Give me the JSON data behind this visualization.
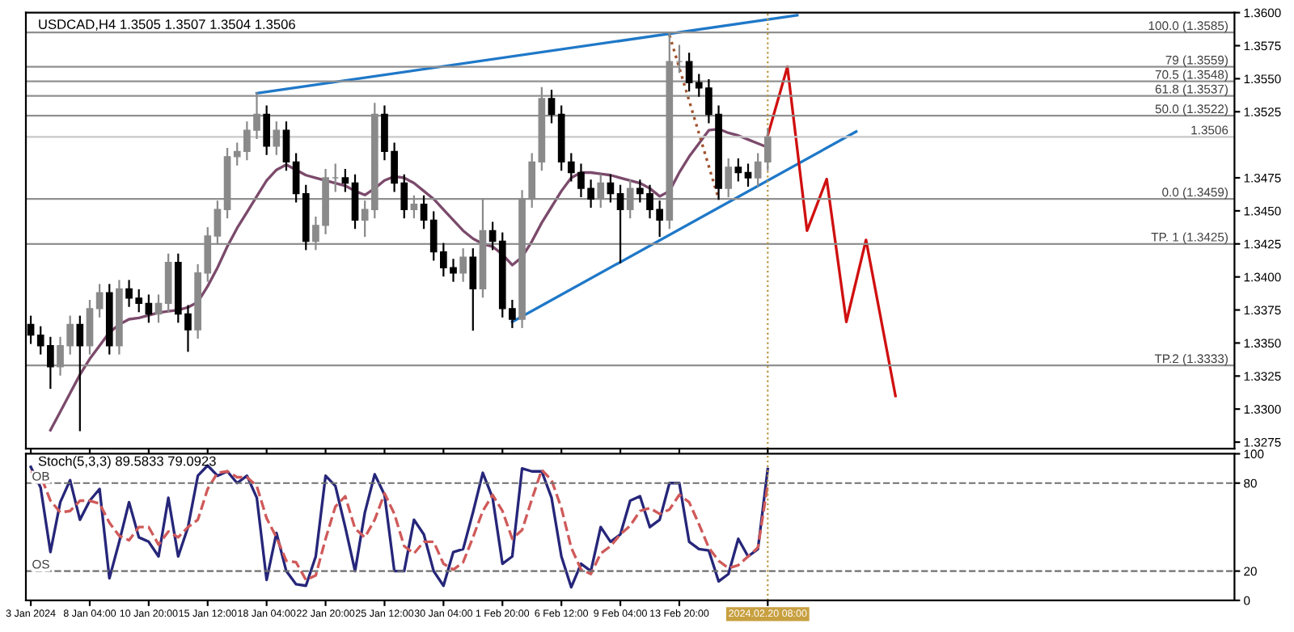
{
  "chart_data": [
    {
      "type": "candlestick",
      "title": "USDCAD,H4 1.3505 1.3507 1.3504 1.3506",
      "categories": [
        "3 Jan 2024",
        null,
        null,
        null,
        null,
        null,
        "8 Jan 04:00",
        null,
        null,
        null,
        null,
        null,
        "10 Jan 20:00",
        null,
        null,
        null,
        null,
        null,
        "15 Jan 12:00",
        null,
        null,
        null,
        null,
        null,
        "18 Jan 04:00",
        null,
        null,
        null,
        null,
        null,
        "22 Jan 20:00",
        null,
        null,
        null,
        null,
        null,
        "25 Jan 12:00",
        null,
        null,
        null,
        null,
        null,
        "30 Jan 04:00",
        null,
        null,
        null,
        null,
        null,
        "1 Feb 20:00",
        null,
        null,
        null,
        null,
        null,
        "6 Feb 12:00",
        null,
        null,
        null,
        null,
        null,
        "9 Feb 04:00",
        null,
        null,
        null,
        null,
        null,
        "13 Feb 20:00",
        null,
        null,
        null,
        null,
        null,
        null,
        null,
        null,
        "2024.02.20 08:00",
        null,
        null,
        null,
        null,
        null,
        null,
        null,
        null,
        null,
        null,
        null,
        null,
        null,
        null,
        null,
        null,
        null,
        null,
        null,
        null,
        null,
        null,
        null,
        null,
        null,
        null,
        null,
        null,
        null,
        null,
        null,
        null,
        null,
        null,
        null,
        null,
        null,
        null,
        null,
        null,
        null,
        null,
        null,
        null,
        null,
        null,
        null
      ],
      "ohlc": [
        [
          1.3364,
          1.337,
          1.335,
          1.3356
        ],
        [
          1.3356,
          1.3362,
          1.3342,
          1.3348
        ],
        [
          1.3348,
          1.3354,
          1.3316,
          1.3332
        ],
        [
          1.3332,
          1.3354,
          1.3326,
          1.3348
        ],
        [
          1.3348,
          1.337,
          1.3342,
          1.3364
        ],
        [
          1.3364,
          1.337,
          1.3284,
          1.3348
        ],
        [
          1.3348,
          1.3382,
          1.3342,
          1.3376
        ],
        [
          1.3376,
          1.3394,
          1.337,
          1.3388
        ],
        [
          1.3388,
          1.3394,
          1.3342,
          1.3348
        ],
        [
          1.3348,
          1.3397,
          1.3342,
          1.3391
        ],
        [
          1.3391,
          1.3397,
          1.3378,
          1.3384
        ],
        [
          1.3384,
          1.339,
          1.3374,
          1.338
        ],
        [
          1.338,
          1.3386,
          1.3366,
          1.3372
        ],
        [
          1.3372,
          1.3386,
          1.3366,
          1.338
        ],
        [
          1.338,
          1.3417,
          1.3374,
          1.3411
        ],
        [
          1.3411,
          1.3417,
          1.3366,
          1.3372
        ],
        [
          1.3372,
          1.3378,
          1.3344,
          1.336
        ],
        [
          1.336,
          1.3409,
          1.3354,
          1.3403
        ],
        [
          1.3403,
          1.3437,
          1.3397,
          1.3431
        ],
        [
          1.3431,
          1.3457,
          1.3425,
          1.3451
        ],
        [
          1.3451,
          1.3497,
          1.3445,
          1.3491
        ],
        [
          1.3491,
          1.3501,
          1.3485,
          1.3495
        ],
        [
          1.3495,
          1.3517,
          1.3489,
          1.3511
        ],
        [
          1.3511,
          1.3539,
          1.3505,
          1.3523
        ],
        [
          1.3523,
          1.3529,
          1.3493,
          1.3499
        ],
        [
          1.3499,
          1.3517,
          1.3493,
          1.3511
        ],
        [
          1.3511,
          1.3517,
          1.3481,
          1.3487
        ],
        [
          1.3487,
          1.3493,
          1.3457,
          1.3463
        ],
        [
          1.3463,
          1.3469,
          1.3421,
          1.3427
        ],
        [
          1.3427,
          1.3445,
          1.3421,
          1.3439
        ],
        [
          1.3439,
          1.3481,
          1.3433,
          1.3475
        ],
        [
          1.3475,
          1.3485,
          1.3465,
          1.3475
        ],
        [
          1.3475,
          1.3481,
          1.3465,
          1.3471
        ],
        [
          1.3471,
          1.3477,
          1.3437,
          1.3443
        ],
        [
          1.3443,
          1.3457,
          1.3431,
          1.3451
        ],
        [
          1.3451,
          1.3531,
          1.3445,
          1.3523
        ],
        [
          1.3523,
          1.3529,
          1.3489,
          1.3495
        ],
        [
          1.3495,
          1.3501,
          1.3465,
          1.3471
        ],
        [
          1.3471,
          1.3477,
          1.3445,
          1.3451
        ],
        [
          1.3451,
          1.3461,
          1.3445,
          1.3455
        ],
        [
          1.3455,
          1.3461,
          1.3437,
          1.3443
        ],
        [
          1.3443,
          1.3449,
          1.3413,
          1.3419
        ],
        [
          1.3419,
          1.3425,
          1.3401,
          1.3407
        ],
        [
          1.3407,
          1.3413,
          1.3397,
          1.3403
        ],
        [
          1.3403,
          1.3421,
          1.3397,
          1.3415
        ],
        [
          1.3415,
          1.3421,
          1.336,
          1.3391
        ],
        [
          1.3391,
          1.3459,
          1.3385,
          1.3435
        ],
        [
          1.3435,
          1.3441,
          1.3421,
          1.3427
        ],
        [
          1.3427,
          1.3433,
          1.337,
          1.3376
        ],
        [
          1.3376,
          1.3382,
          1.3362,
          1.3368
        ],
        [
          1.3368,
          1.3465,
          1.3362,
          1.3459
        ],
        [
          1.3459,
          1.3493,
          1.3453,
          1.3487
        ],
        [
          1.3487,
          1.3543,
          1.3481,
          1.3535
        ],
        [
          1.3535,
          1.3541,
          1.3517,
          1.3523
        ],
        [
          1.3523,
          1.3529,
          1.3481,
          1.3487
        ],
        [
          1.3487,
          1.3493,
          1.3473,
          1.3479
        ],
        [
          1.3479,
          1.3485,
          1.3461,
          1.3467
        ],
        [
          1.3467,
          1.3473,
          1.3453,
          1.3459
        ],
        [
          1.3459,
          1.3477,
          1.3453,
          1.3471
        ],
        [
          1.3471,
          1.3477,
          1.3457,
          1.3463
        ],
        [
          1.3463,
          1.3469,
          1.3411,
          1.3451
        ],
        [
          1.3451,
          1.3473,
          1.3445,
          1.3467
        ],
        [
          1.3467,
          1.3473,
          1.3457,
          1.3463
        ],
        [
          1.3463,
          1.3469,
          1.3445,
          1.3451
        ],
        [
          1.3451,
          1.3457,
          1.3431,
          1.3443
        ],
        [
          1.3443,
          1.3585,
          1.3437,
          1.3563
        ],
        [
          1.3563,
          1.3575,
          1.3555,
          1.3563
        ],
        [
          1.3563,
          1.3569,
          1.3541,
          1.3547
        ],
        [
          1.3547,
          1.3553,
          1.3537,
          1.3543
        ],
        [
          1.3543,
          1.3549,
          1.3517,
          1.3523
        ],
        [
          1.3523,
          1.3529,
          1.3459,
          1.3467
        ],
        [
          1.3467,
          1.3489,
          1.3461,
          1.3483
        ],
        [
          1.3483,
          1.3489,
          1.3473,
          1.3479
        ],
        [
          1.3479,
          1.3485,
          1.3469,
          1.3475
        ],
        [
          1.3475,
          1.3493,
          1.3469,
          1.3487
        ],
        [
          1.3487,
          1.3512,
          1.3481,
          1.3506
        ],
        null,
        null,
        null,
        null,
        null,
        null,
        null,
        null,
        null,
        null,
        null,
        null,
        null,
        null,
        null,
        null,
        null,
        null,
        null,
        null,
        null,
        null,
        null,
        null,
        null,
        null,
        null,
        null,
        null,
        null,
        null,
        null,
        null,
        null,
        null,
        null,
        null,
        null,
        null,
        null,
        null,
        null,
        null,
        null,
        null,
        null,
        null
      ],
      "series": [
        {
          "type": "line",
          "color": "#7b4a6b",
          "values": [
            null,
            null,
            1.3284,
            1.3298,
            1.3312,
            1.3326,
            1.3338,
            1.3348,
            1.3358,
            1.3364,
            1.3368,
            1.3369,
            1.3371,
            1.3373,
            1.3374,
            1.3375,
            1.3377,
            1.3381,
            1.3393,
            1.3407,
            1.3423,
            1.3437,
            1.3449,
            1.3461,
            1.3473,
            1.3481,
            1.3485,
            1.3481,
            1.3477,
            1.3475,
            1.3473,
            1.3471,
            1.3469,
            1.3465,
            1.3462,
            1.3467,
            1.3473,
            1.3476,
            1.3475,
            1.3471,
            1.3465,
            1.3459,
            1.3451,
            1.3443,
            1.3435,
            1.3429,
            1.3425,
            1.3423,
            1.3417,
            1.3409,
            1.3415,
            1.3427,
            1.3441,
            1.3453,
            1.3465,
            1.3475,
            1.3479,
            1.3479,
            1.3478,
            1.3477,
            1.3475,
            1.3473,
            1.3471,
            1.3467,
            1.3461,
            1.3465,
            1.3479,
            1.3491,
            1.3501,
            1.3511,
            1.3512,
            1.3509,
            1.3507,
            1.3504,
            1.3501,
            1.3498,
            null,
            null,
            null,
            null,
            null,
            null,
            null,
            null,
            null,
            null,
            null,
            null,
            null,
            null,
            null,
            null,
            null,
            null,
            null,
            null,
            null,
            null,
            null,
            null,
            null,
            null,
            null,
            null,
            null,
            null,
            null,
            null,
            null,
            null,
            null,
            null,
            null,
            null,
            null,
            null,
            null,
            null,
            null,
            null,
            null,
            null,
            null
          ]
        },
        {
          "type": "line",
          "color": "#1f78c8",
          "values": [
            null,
            null,
            null,
            null,
            null,
            null,
            null,
            null,
            null,
            null,
            null,
            null,
            null,
            null,
            null,
            null,
            null,
            null,
            null,
            null,
            null,
            null,
            null,
            1.3539,
            null,
            null,
            null,
            null,
            null,
            null,
            null,
            null,
            null,
            null,
            null,
            null,
            null,
            null,
            null,
            null,
            null,
            null,
            null,
            null,
            null,
            null,
            null,
            null,
            null,
            null,
            null,
            null,
            null,
            null,
            null,
            null,
            null,
            null,
            null,
            null,
            null,
            null,
            null,
            null,
            null,
            null,
            null,
            null,
            null,
            null,
            null,
            null,
            null,
            null,
            null,
            null,
            null,
            null,
            1.3598,
            null,
            null,
            null,
            null,
            null,
            null,
            null,
            null,
            null,
            null,
            null,
            null,
            null,
            null,
            null,
            null,
            null,
            null,
            null,
            null,
            null,
            null,
            null,
            null,
            null,
            null,
            null,
            null,
            null,
            null,
            null,
            null,
            null,
            null,
            null,
            null,
            null,
            null,
            null,
            null,
            null,
            null,
            null,
            null
          ]
        },
        {
          "type": "line",
          "color": "#1f78c8",
          "values": [
            null,
            null,
            null,
            null,
            null,
            null,
            null,
            null,
            null,
            null,
            null,
            null,
            null,
            null,
            null,
            null,
            null,
            null,
            null,
            null,
            null,
            null,
            null,
            null,
            null,
            null,
            null,
            null,
            null,
            null,
            null,
            null,
            null,
            null,
            null,
            null,
            null,
            null,
            null,
            null,
            null,
            null,
            null,
            null,
            null,
            null,
            null,
            null,
            null,
            1.3366,
            null,
            null,
            null,
            null,
            null,
            null,
            null,
            null,
            null,
            null,
            null,
            null,
            null,
            null,
            null,
            null,
            null,
            null,
            null,
            null,
            null,
            null,
            null,
            null,
            null,
            null,
            null,
            null,
            null,
            null,
            null,
            null,
            null,
            null,
            1.351,
            null,
            null,
            null,
            null,
            null,
            null,
            null,
            null,
            null,
            null,
            null,
            null,
            null,
            null,
            null,
            null,
            null,
            null,
            null,
            null,
            null,
            null,
            null,
            null,
            null,
            null,
            null,
            null,
            null,
            null,
            null,
            null,
            null,
            null,
            null,
            null,
            null,
            null
          ]
        },
        {
          "type": "line",
          "color": "#d01010",
          "values": [
            null,
            null,
            null,
            null,
            null,
            null,
            null,
            null,
            null,
            null,
            null,
            null,
            null,
            null,
            null,
            null,
            null,
            null,
            null,
            null,
            null,
            null,
            null,
            null,
            null,
            null,
            null,
            null,
            null,
            null,
            null,
            null,
            null,
            null,
            null,
            null,
            null,
            null,
            null,
            null,
            null,
            null,
            null,
            null,
            null,
            null,
            null,
            null,
            null,
            null,
            null,
            null,
            null,
            null,
            null,
            null,
            null,
            null,
            null,
            null,
            null,
            null,
            null,
            null,
            null,
            null,
            null,
            null,
            null,
            null,
            null,
            null,
            null,
            null,
            null,
            1.3507,
            null,
            1.3559,
            null,
            1.3435,
            null,
            1.3474,
            null,
            1.3366,
            null,
            1.3428,
            null,
            null,
            1.331,
            null,
            null,
            null,
            null,
            null,
            null,
            null,
            null,
            null,
            null,
            null,
            null,
            null,
            null,
            null,
            null,
            null,
            null,
            null,
            null,
            null,
            null,
            null,
            null,
            null,
            null,
            null,
            null,
            null,
            null,
            null,
            null,
            null,
            null
          ]
        },
        {
          "type": "line",
          "color": "#a0522d",
          "line_style": "dotted",
          "values": [
            null,
            null,
            null,
            null,
            null,
            null,
            null,
            null,
            null,
            null,
            null,
            null,
            null,
            null,
            null,
            null,
            null,
            null,
            null,
            null,
            null,
            null,
            null,
            null,
            null,
            null,
            null,
            null,
            null,
            null,
            null,
            null,
            null,
            null,
            null,
            null,
            null,
            null,
            null,
            null,
            null,
            null,
            null,
            null,
            null,
            null,
            null,
            null,
            null,
            null,
            null,
            null,
            null,
            null,
            null,
            null,
            null,
            null,
            null,
            null,
            null,
            null,
            null,
            null,
            null,
            1.3583,
            null,
            null,
            null,
            null,
            1.3459,
            null,
            null,
            null,
            null,
            null,
            null,
            null,
            null,
            null,
            null,
            null,
            null,
            null,
            null,
            null,
            null,
            null,
            null,
            null,
            null,
            null,
            null,
            null,
            null,
            null,
            null,
            null,
            null,
            null,
            null,
            null,
            null,
            null,
            null,
            null,
            null,
            null,
            null,
            null,
            null,
            null,
            null,
            null,
            null,
            null,
            null,
            null,
            null,
            null,
            null,
            null,
            null
          ]
        }
      ],
      "ylim": [
        1.327,
        1.36
      ],
      "yticks": [
        {
          "value": 1.3275,
          "label": "1.3275"
        },
        {
          "value": 1.33,
          "label": "1.3300"
        },
        {
          "value": 1.3325,
          "label": "1.3325"
        },
        {
          "value": 1.335,
          "label": "1.3350"
        },
        {
          "value": 1.3375,
          "label": "1.3375"
        },
        {
          "value": 1.34,
          "label": "1.3400"
        },
        {
          "value": 1.3425,
          "label": "1.3425"
        },
        {
          "value": 1.345,
          "label": "1.3450"
        },
        {
          "value": 1.3475,
          "label": "1.3475"
        },
        {
          "value": 1.3525,
          "label": "1.3525"
        },
        {
          "value": 1.355,
          "label": "1.3550"
        },
        {
          "value": 1.3575,
          "label": "1.3575"
        },
        {
          "value": 1.36,
          "label": "1.3600"
        }
      ],
      "ref_lines": [
        {
          "axis": "y",
          "value": 1.3585,
          "label": "100.0 (1.3585)",
          "color": "#909090"
        },
        {
          "axis": "y",
          "value": 1.3559,
          "label": "79 (1.3559)",
          "color": "#909090"
        },
        {
          "axis": "y",
          "value": 1.3548,
          "label": "70.5 (1.3548)",
          "color": "#909090"
        },
        {
          "axis": "y",
          "value": 1.3537,
          "label": "61.8 (1.3537)",
          "color": "#909090"
        },
        {
          "axis": "y",
          "value": 1.3522,
          "label": "50.0 (1.3522)",
          "color": "#909090"
        },
        {
          "axis": "y",
          "value": 1.3506,
          "label": "1.3506",
          "color": "#c8c8c8"
        },
        {
          "axis": "y",
          "value": 1.3459,
          "label": "0.0 (1.3459)",
          "color": "#909090"
        },
        {
          "axis": "y",
          "value": 1.3425,
          "label": "TP. 1 (1.3425)",
          "color": "#909090"
        },
        {
          "axis": "y",
          "value": 1.3333,
          "label": "TP.2 (1.3333)",
          "color": "#909090"
        },
        {
          "axis": "x",
          "value": "2024.02.20 08:00",
          "color": "#b8963c",
          "line_style": "dotted"
        }
      ],
      "tick_labels": "y"
    },
    {
      "type": "line",
      "title": "Stoch(5,3,3) 89.5833 79.0923",
      "categories": [
        "3 Jan 2024",
        null,
        null,
        null,
        null,
        null,
        "8 Jan 04:00",
        null,
        null,
        null,
        null,
        null,
        "10 Jan 20:00",
        null,
        null,
        null,
        null,
        null,
        "15 Jan 12:00",
        null,
        null,
        null,
        null,
        null,
        "18 Jan 04:00",
        null,
        null,
        null,
        null,
        null,
        "22 Jan 20:00",
        null,
        null,
        null,
        null,
        null,
        "25 Jan 12:00",
        null,
        null,
        null,
        null,
        null,
        "30 Jan 04:00",
        null,
        null,
        null,
        null,
        null,
        "1 Feb 20:00",
        null,
        null,
        null,
        null,
        null,
        "6 Feb 12:00",
        null,
        null,
        null,
        null,
        null,
        "9 Feb 04:00",
        null,
        null,
        null,
        null,
        null,
        "13 Feb 20:00",
        null,
        null,
        null,
        null,
        null,
        null,
        null,
        null,
        "2024.02.20 08:00",
        null,
        null,
        null,
        null,
        null,
        null,
        null,
        null,
        null,
        null,
        null,
        null,
        null,
        null,
        null,
        null,
        null,
        null,
        null,
        null,
        null,
        null,
        null,
        null,
        null,
        null,
        null,
        null,
        null,
        null,
        null,
        null,
        null,
        null,
        null,
        null,
        null,
        null,
        null,
        null,
        null,
        null,
        null,
        null,
        null,
        null,
        null
      ],
      "series": [
        {
          "color": "#26267a",
          "values": [
            91,
            77,
            33,
            67,
            82,
            55,
            68,
            76,
            15,
            40,
            67,
            43,
            40,
            30,
            70,
            30,
            50,
            85,
            92,
            85,
            88,
            80,
            85,
            70,
            14,
            46,
            20,
            11,
            10,
            30,
            85,
            78,
            50,
            20,
            60,
            86,
            72,
            20,
            20,
            55,
            45,
            20,
            10,
            33,
            35,
            60,
            87,
            70,
            25,
            30,
            90,
            88,
            88,
            70,
            30,
            9,
            25,
            20,
            50,
            40,
            45,
            68,
            71,
            50,
            55,
            80,
            80,
            40,
            35,
            34,
            13,
            18,
            42,
            30,
            35,
            89.6,
            null,
            null,
            null,
            null,
            null,
            null,
            null,
            null,
            null,
            null,
            null,
            null,
            null,
            null,
            null,
            null,
            null,
            null,
            null,
            null,
            null,
            null,
            null,
            null,
            null,
            null,
            null,
            null,
            null,
            null,
            null,
            null,
            null,
            null,
            null,
            null,
            null,
            null,
            null,
            null,
            null,
            null,
            null,
            null,
            null,
            null,
            null
          ]
        },
        {
          "color": "#d05a5a",
          "line_style": "dashed",
          "values": [
            88,
            85,
            68,
            60,
            61,
            68,
            68,
            66,
            53,
            44,
            41,
            50,
            50,
            38,
            47,
            43,
            50,
            55,
            76,
            87,
            88,
            84,
            84,
            78,
            56,
            43,
            27,
            26,
            14,
            17,
            42,
            64,
            71,
            49,
            43,
            55,
            73,
            59,
            37,
            32,
            40,
            40,
            25,
            21,
            26,
            43,
            61,
            72,
            61,
            42,
            48,
            69,
            89,
            82,
            63,
            36,
            21,
            18,
            32,
            37,
            45,
            51,
            61,
            63,
            59,
            62,
            72,
            67,
            52,
            36,
            27,
            22,
            24,
            30,
            36,
            79.1,
            null,
            null,
            null,
            null,
            null,
            null,
            null,
            null,
            null,
            null,
            null,
            null,
            null,
            null,
            null,
            null,
            null,
            null,
            null,
            null,
            null,
            null,
            null,
            null,
            null,
            null,
            null,
            null,
            null,
            null,
            null,
            null,
            null,
            null,
            null,
            null,
            null,
            null,
            null,
            null,
            null,
            null,
            null,
            null,
            null,
            null,
            null
          ]
        }
      ],
      "ylim": [
        0,
        100
      ],
      "yticks": [
        0,
        20,
        80,
        100
      ],
      "ref_lines": [
        {
          "axis": "y",
          "value": 80,
          "label": "OB",
          "color": "#707070",
          "line_style": "dashed"
        },
        {
          "axis": "y",
          "value": 20,
          "label": "OS",
          "color": "#707070",
          "line_style": "dashed"
        },
        {
          "axis": "x",
          "value": "2024.02.20 08:00",
          "color": "#b8963c",
          "line_style": "dotted"
        }
      ]
    }
  ]
}
